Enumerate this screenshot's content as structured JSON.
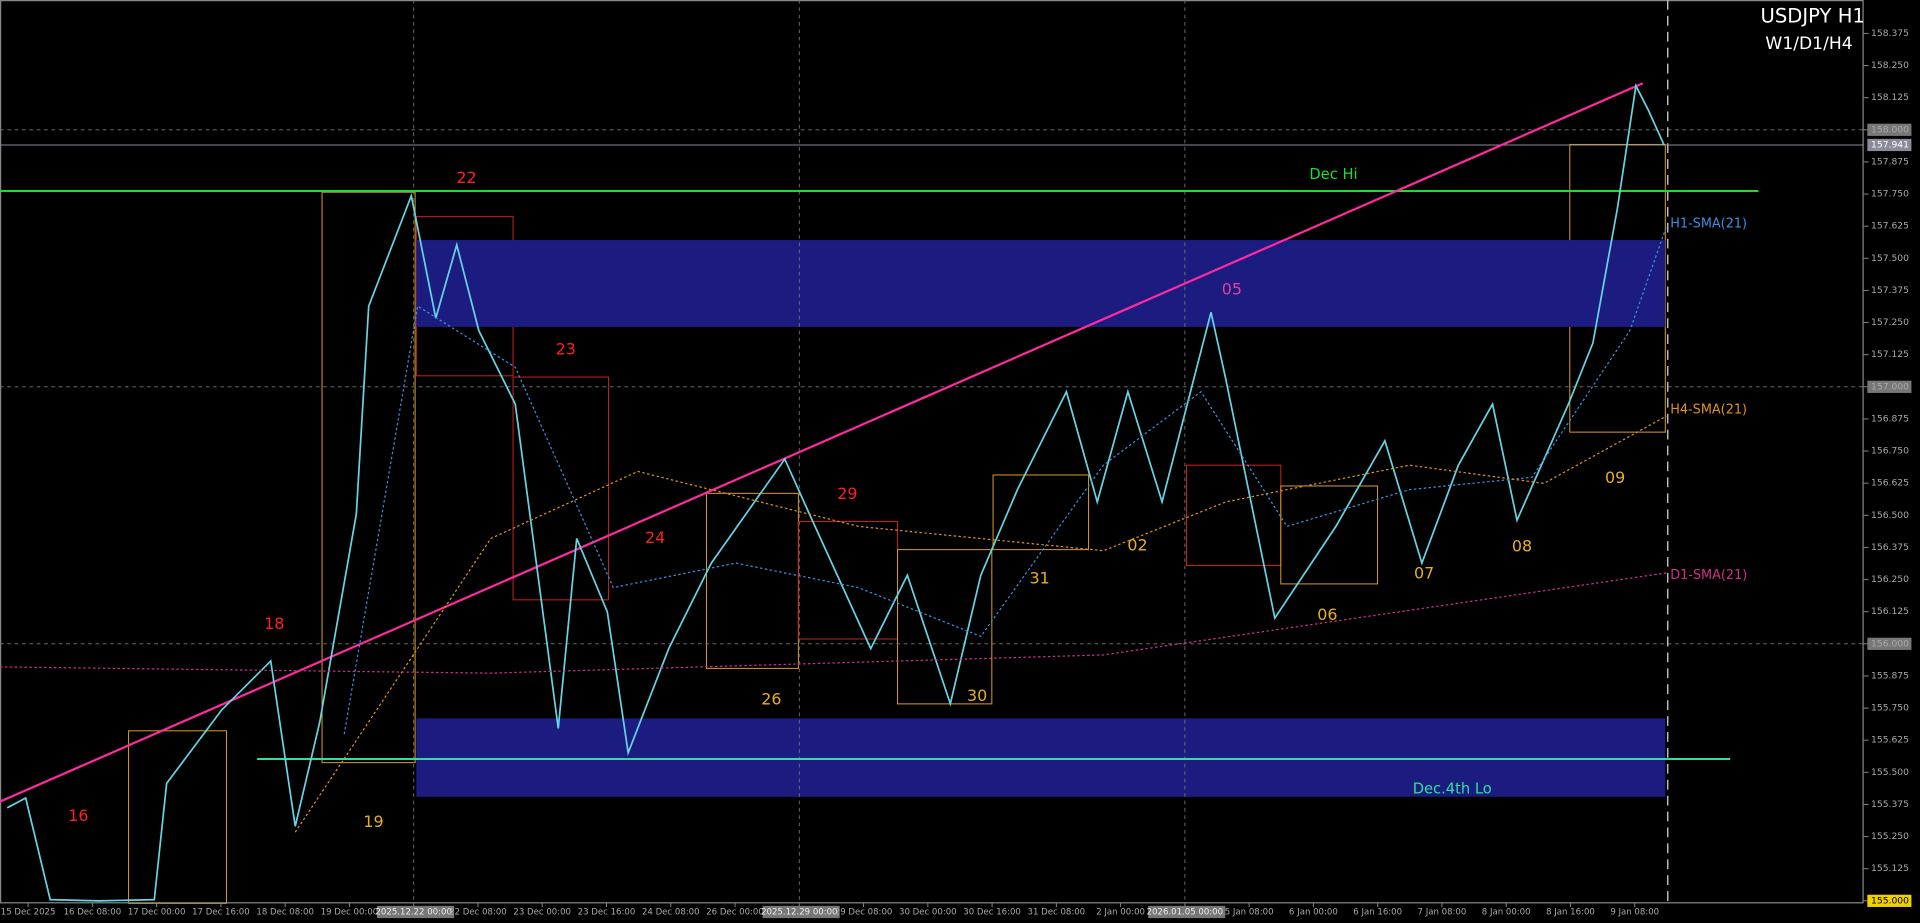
{
  "chart_data": {
    "type": "line",
    "title": "USDJPY H1",
    "subtitle": "W1/D1/H4",
    "xlim": [
      -7,
      457
    ],
    "ylim": [
      154.99,
      158.505
    ],
    "xticks": [
      {
        "value": 0,
        "label": "15 Dec 2025"
      },
      {
        "value": 16,
        "label": "16 Dec 08:00"
      },
      {
        "value": 32,
        "label": "17 Dec 00:00"
      },
      {
        "value": 48,
        "label": "17 Dec 16:00"
      },
      {
        "value": 64,
        "label": "18 Dec 08:00"
      },
      {
        "value": 80,
        "label": "19 Dec 00:00"
      },
      {
        "value": 96,
        "label": "2025.12.22 00:00"
      },
      {
        "value": 112,
        "label": "22 Dec 08:00"
      },
      {
        "value": 128,
        "label": "23 Dec 00:00"
      },
      {
        "value": 144,
        "label": "23 Dec 16:00"
      },
      {
        "value": 160,
        "label": "24 Dec 08:00"
      },
      {
        "value": 176,
        "label": "26 Dec 00:00"
      },
      {
        "value": 192,
        "label": "2025.12.29 00:00"
      },
      {
        "value": 208,
        "label": "29 Dec 08:00"
      },
      {
        "value": 224,
        "label": "30 Dec 00:00"
      },
      {
        "value": 240,
        "label": "30 Dec 16:00"
      },
      {
        "value": 256,
        "label": "31 Dec 08:00"
      },
      {
        "value": 272,
        "label": "2 Jan 00:00"
      },
      {
        "value": 288,
        "label": "2026.01.05 00:00"
      },
      {
        "value": 304,
        "label": "5 Jan 08:00"
      },
      {
        "value": 320,
        "label": "6 Jan 00:00"
      },
      {
        "value": 336,
        "label": "6 Jan 16:00"
      },
      {
        "value": 352,
        "label": "7 Jan 08:00"
      },
      {
        "value": 368,
        "label": "8 Jan 00:00"
      },
      {
        "value": 384,
        "label": "8 Jan 16:00"
      },
      {
        "value": 400,
        "label": "9 Jan 08:00"
      }
    ],
    "yticks": [
      {
        "value": 158.375,
        "label": "158.375"
      },
      {
        "value": 158.25,
        "label": "158.250"
      },
      {
        "value": 158.125,
        "label": "158.125"
      },
      {
        "value": 158,
        "label": "158.000"
      },
      {
        "value": 157.875,
        "label": "157.875"
      },
      {
        "value": 157.75,
        "label": "157.750"
      },
      {
        "value": 157.625,
        "label": "157.625"
      },
      {
        "value": 157.5,
        "label": "157.500"
      },
      {
        "value": 157.375,
        "label": "157.375"
      },
      {
        "value": 157.25,
        "label": "157.250"
      },
      {
        "value": 157.125,
        "label": "157.125"
      },
      {
        "value": 157,
        "label": "157.000"
      },
      {
        "value": 156.875,
        "label": "156.875"
      },
      {
        "value": 156.75,
        "label": "156.750"
      },
      {
        "value": 156.625,
        "label": "156.625"
      },
      {
        "value": 156.5,
        "label": "156.500"
      },
      {
        "value": 156.375,
        "label": "156.375"
      },
      {
        "value": 156.25,
        "label": "156.250"
      },
      {
        "value": 156.125,
        "label": "156.125"
      },
      {
        "value": 156,
        "label": "156.000"
      },
      {
        "value": 155.875,
        "label": "155.875"
      },
      {
        "value": 155.75,
        "label": "155.750"
      },
      {
        "value": 155.625,
        "label": "155.625"
      },
      {
        "value": 155.5,
        "label": "155.500"
      },
      {
        "value": 155.375,
        "label": "155.375"
      },
      {
        "value": 155.25,
        "label": "155.250"
      },
      {
        "value": 155.125,
        "label": "155.125"
      },
      {
        "value": 155,
        "label": "155.000"
      }
    ],
    "series": [
      {
        "name": "USDJPY",
        "color": "#66d4e4",
        "x": [
          -5.2,
          -0.6,
          5.5,
          17.7,
          31.4,
          34.5,
          48.2,
          60.4,
          66.5,
          72.6,
          81.7,
          84.8,
          95.4,
          101.5,
          106.7,
          112.2,
          121.3,
          132.0,
          136.6,
          144.2,
          149.4,
          159.5,
          170.1,
          188.4,
          194.5,
          209.8,
          218.9,
          229.6,
          237.2,
          246.3,
          258.5,
          266.2,
          273.8,
          282.3,
          294.5,
          298.2,
          310.4,
          325.6,
          337.8,
          347.0,
          356.1,
          364.6,
          370.7,
          383.5,
          389.6,
          395.7,
          400.3,
          403.4,
          407.3
        ],
        "values": [
          155.362,
          155.4,
          155.005,
          155.0,
          155.005,
          155.457,
          155.743,
          155.933,
          155.29,
          155.695,
          156.505,
          157.314,
          157.743,
          157.267,
          157.552,
          157.219,
          156.933,
          155.671,
          156.41,
          156.124,
          155.576,
          155.981,
          156.314,
          156.719,
          156.505,
          155.981,
          156.267,
          155.767,
          156.267,
          156.6,
          156.981,
          156.552,
          156.981,
          156.552,
          157.29,
          157.029,
          156.1,
          156.457,
          156.79,
          156.314,
          156.695,
          156.933,
          156.481,
          156.933,
          157.171,
          157.695,
          158.171,
          158.076,
          157.941
        ]
      },
      {
        "name": "H1-SMA(21)",
        "color": "#3a8fe0",
        "x": [
          78.7,
          97,
          121.3,
          145.7,
          176.2,
          206.7,
          237.2,
          267.7,
          292,
          313.4,
          343.9,
          374.4,
          398.8,
          407.9
        ],
        "values": [
          155.648,
          157.314,
          157.076,
          156.219,
          156.314,
          156.219,
          156.029,
          156.695,
          156.981,
          156.457,
          156.6,
          156.648,
          157.219,
          157.624
        ]
      },
      {
        "name": "H4-SMA(21)",
        "color": "#e09020",
        "x": [
          66.5,
          115.2,
          151.8,
          206.7,
          267.7,
          298.2,
          343.9,
          377.4,
          407.9
        ],
        "values": [
          155.267,
          156.41,
          156.671,
          156.457,
          156.362,
          156.552,
          156.695,
          156.624,
          156.886
        ]
      },
      {
        "name": "D1-SMA(21)",
        "color": "#d0308a",
        "x": [
          -7,
          115.2,
          267.7,
          407.9
        ],
        "values": [
          155.91,
          155.886,
          155.957,
          156.276
        ]
      }
    ],
    "last_price": 157.941,
    "value_labels": {
      "last_price": "157.941"
    },
    "grid_levels": [
      158,
      157,
      156
    ],
    "levels": [
      {
        "name": "Dec Hi",
        "value": 157.762,
        "color": "#22dd22"
      },
      {
        "name": "Dec.4th Lo",
        "value": 155.552,
        "color": "#2ee0a0"
      }
    ],
    "zones": [
      {
        "from": 157.233,
        "to": 157.571
      },
      {
        "from": 155.405,
        "to": 155.71
      }
    ],
    "zone_color": "#1c1c80",
    "trendline": {
      "color": "#ff2aa0",
      "x": [
        -7,
        402
      ],
      "values": [
        155.386,
        158.181
      ]
    },
    "annotations": [
      {
        "text": "22",
        "color": "#ff2020"
      },
      {
        "text": "23",
        "color": "#ff2020"
      },
      {
        "text": "24",
        "color": "#ff2020"
      },
      {
        "text": "29",
        "color": "#ff2020"
      },
      {
        "text": "18",
        "color": "#ff2020"
      },
      {
        "text": "16",
        "color": "#ff2020"
      },
      {
        "text": "19",
        "color": "#e8b020"
      },
      {
        "text": "26",
        "color": "#e8b020"
      },
      {
        "text": "30",
        "color": "#e8b020"
      },
      {
        "text": "31",
        "color": "#e8b020"
      },
      {
        "text": "02",
        "color": "#e8b020"
      },
      {
        "text": "05",
        "color": "#e040a0"
      },
      {
        "text": "06",
        "color": "#e8b020"
      },
      {
        "text": "07",
        "color": "#e8b020"
      },
      {
        "text": "08",
        "color": "#e8b020"
      },
      {
        "text": "09",
        "color": "#e8b020"
      }
    ]
  }
}
